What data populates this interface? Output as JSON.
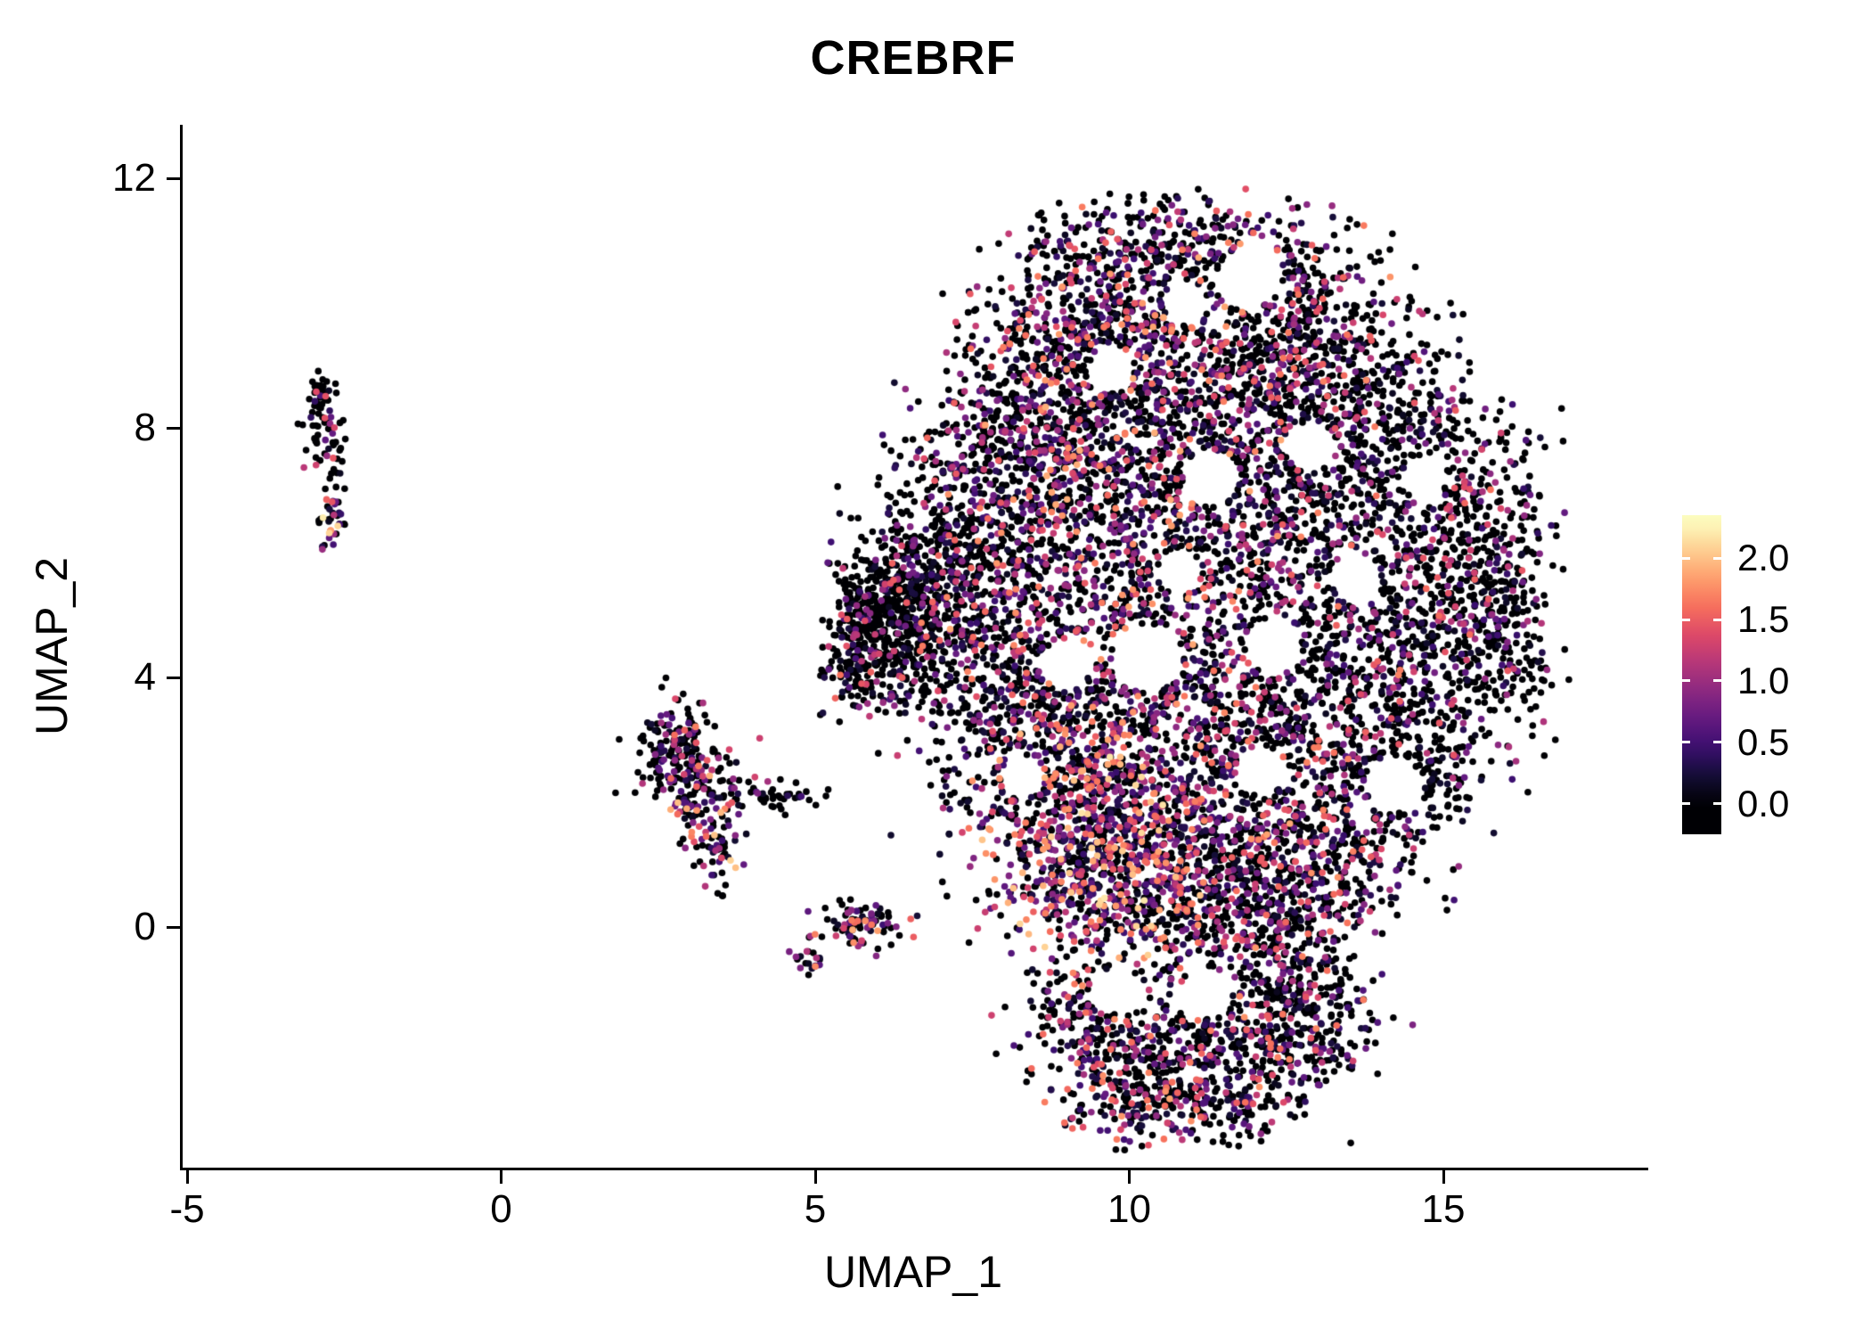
{
  "figure": {
    "background": "#FFFFFF",
    "axis_color": "#000000",
    "text_color": "#000000"
  },
  "chart_data": {
    "type": "scatter",
    "title": "CREBRF",
    "xlabel": "UMAP_1",
    "ylabel": "UMAP_2",
    "xlim": [
      -5.9,
      18.2
    ],
    "ylim": [
      -3.9,
      12.6
    ],
    "grid": false,
    "x_ticks": [
      {
        "value": -5,
        "label": "-5"
      },
      {
        "value": 0,
        "label": "0"
      },
      {
        "value": 5,
        "label": "5"
      },
      {
        "value": 10,
        "label": "10"
      },
      {
        "value": 15,
        "label": "15"
      }
    ],
    "y_ticks": [
      {
        "value": 0,
        "label": "0"
      },
      {
        "value": 4,
        "label": "4"
      },
      {
        "value": 8,
        "label": "8"
      },
      {
        "value": 12,
        "label": "12"
      }
    ],
    "legend": {
      "position": "right",
      "value_range": [
        0,
        2.3
      ],
      "bar_range": [
        -0.25,
        2.35
      ],
      "ticks": [
        {
          "value": 0.0,
          "label": "0.0"
        },
        {
          "value": 0.5,
          "label": "0.5"
        },
        {
          "value": 1.0,
          "label": "1.0"
        },
        {
          "value": 1.5,
          "label": "1.5"
        },
        {
          "value": 2.0,
          "label": "2.0"
        }
      ]
    },
    "colormap": {
      "name": "magma",
      "stops": [
        "#000004",
        "#140E36",
        "#3B0F70",
        "#641A80",
        "#8C2981",
        "#B73779",
        "#DE4968",
        "#F7705C",
        "#FE9F6D",
        "#FECF92",
        "#FCFDBF"
      ]
    },
    "point_color_zero": "#000004",
    "cluster_fields": [
      "center_x",
      "center_y",
      "sd_x",
      "sd_y",
      "n_points",
      "prob_zero_expression",
      "expression_amplitude"
    ],
    "clusters": [
      [
        10.6,
        11.0,
        1.1,
        0.45,
        220,
        0.55,
        1.7
      ],
      [
        9.3,
        10.2,
        0.8,
        0.6,
        200,
        0.6,
        1.6
      ],
      [
        12.2,
        10.3,
        0.9,
        0.6,
        220,
        0.6,
        1.6
      ],
      [
        8.6,
        9.0,
        0.8,
        0.7,
        260,
        0.6,
        1.6
      ],
      [
        10.2,
        9.3,
        0.9,
        0.7,
        300,
        0.5,
        1.8
      ],
      [
        11.8,
        9.0,
        0.9,
        0.7,
        280,
        0.55,
        1.7
      ],
      [
        13.4,
        9.3,
        0.8,
        0.7,
        240,
        0.65,
        1.5
      ],
      [
        7.8,
        7.6,
        0.7,
        0.7,
        260,
        0.6,
        1.6
      ],
      [
        9.3,
        7.8,
        0.9,
        0.8,
        320,
        0.5,
        1.8
      ],
      [
        11.0,
        7.6,
        0.9,
        0.8,
        300,
        0.5,
        1.8
      ],
      [
        12.8,
        7.7,
        0.9,
        0.8,
        280,
        0.6,
        1.6
      ],
      [
        14.4,
        7.8,
        0.8,
        0.8,
        260,
        0.65,
        1.5
      ],
      [
        7.2,
        6.0,
        0.6,
        0.7,
        240,
        0.65,
        1.5
      ],
      [
        8.7,
        6.2,
        0.8,
        0.8,
        280,
        0.55,
        1.7
      ],
      [
        10.4,
        6.0,
        0.9,
        0.8,
        260,
        0.5,
        1.8
      ],
      [
        12.2,
        6.0,
        0.9,
        0.8,
        260,
        0.55,
        1.7
      ],
      [
        13.9,
        6.0,
        0.8,
        0.8,
        260,
        0.65,
        1.5
      ],
      [
        15.5,
        6.2,
        0.6,
        0.9,
        280,
        0.7,
        1.4
      ],
      [
        15.9,
        4.6,
        0.5,
        0.8,
        260,
        0.7,
        1.4
      ],
      [
        7.6,
        4.5,
        0.7,
        0.8,
        260,
        0.6,
        1.6
      ],
      [
        9.2,
        4.6,
        0.8,
        0.8,
        240,
        0.55,
        1.7
      ],
      [
        11.0,
        4.4,
        0.9,
        0.8,
        230,
        0.55,
        1.7
      ],
      [
        12.8,
        4.4,
        0.8,
        0.8,
        240,
        0.6,
        1.6
      ],
      [
        14.5,
        4.2,
        0.7,
        0.8,
        240,
        0.65,
        1.5
      ],
      [
        8.2,
        3.0,
        0.7,
        0.8,
        280,
        0.5,
        1.8
      ],
      [
        9.8,
        3.0,
        0.8,
        0.8,
        300,
        0.45,
        1.9
      ],
      [
        11.5,
        2.9,
        0.8,
        0.8,
        260,
        0.55,
        1.7
      ],
      [
        13.2,
        2.8,
        0.8,
        0.8,
        260,
        0.6,
        1.6
      ],
      [
        14.7,
        2.6,
        0.6,
        0.6,
        180,
        0.65,
        1.5
      ],
      [
        8.8,
        1.6,
        0.7,
        0.7,
        280,
        0.45,
        1.9
      ],
      [
        10.2,
        1.5,
        0.8,
        0.7,
        340,
        0.35,
        2.1
      ],
      [
        11.8,
        1.4,
        0.8,
        0.7,
        280,
        0.5,
        1.8
      ],
      [
        13.3,
        1.3,
        0.7,
        0.6,
        220,
        0.6,
        1.6
      ],
      [
        9.5,
        0.4,
        0.7,
        0.5,
        260,
        0.4,
        2.0
      ],
      [
        11.0,
        0.2,
        0.9,
        0.5,
        280,
        0.55,
        1.7
      ],
      [
        12.6,
        0.3,
        0.7,
        0.5,
        220,
        0.6,
        1.6
      ],
      [
        9.3,
        -1.6,
        0.6,
        0.5,
        180,
        0.55,
        1.7
      ],
      [
        10.4,
        -1.9,
        0.8,
        0.6,
        240,
        0.55,
        1.7
      ],
      [
        11.8,
        -1.9,
        0.8,
        0.6,
        240,
        0.6,
        1.6
      ],
      [
        12.9,
        -1.6,
        0.5,
        0.5,
        150,
        0.6,
        1.6
      ],
      [
        10.2,
        -2.8,
        0.7,
        0.35,
        130,
        0.5,
        1.8
      ],
      [
        11.5,
        -2.9,
        0.7,
        0.3,
        120,
        0.55,
        1.7
      ],
      [
        12.4,
        -0.9,
        0.5,
        0.4,
        120,
        0.6,
        1.6
      ],
      [
        5.85,
        5.0,
        0.35,
        0.55,
        220,
        0.8,
        1.4
      ],
      [
        6.5,
        5.4,
        0.45,
        0.65,
        260,
        0.75,
        1.4
      ],
      [
        6.3,
        4.3,
        0.45,
        0.45,
        160,
        0.7,
        1.5
      ],
      [
        5.6,
        4.0,
        0.25,
        0.3,
        60,
        0.7,
        1.5
      ],
      [
        2.75,
        2.8,
        0.3,
        0.4,
        150,
        0.7,
        1.7
      ],
      [
        3.3,
        2.3,
        0.35,
        0.3,
        70,
        0.6,
        1.8
      ],
      [
        4.3,
        2.1,
        0.5,
        0.13,
        50,
        0.8,
        1.4
      ],
      [
        3.5,
        1.3,
        0.22,
        0.35,
        60,
        0.5,
        2.0
      ],
      [
        2.9,
        1.9,
        0.15,
        0.25,
        30,
        0.5,
        2.0
      ],
      [
        5.75,
        0.0,
        0.33,
        0.18,
        85,
        0.5,
        1.8
      ],
      [
        4.85,
        -0.5,
        0.12,
        0.15,
        20,
        0.35,
        2.1
      ],
      [
        -2.85,
        8.1,
        0.16,
        0.4,
        60,
        0.75,
        1.4
      ],
      [
        -2.8,
        8.6,
        0.12,
        0.15,
        15,
        0.7,
        1.4
      ],
      [
        -2.72,
        7.1,
        0.08,
        0.25,
        14,
        0.7,
        1.4
      ],
      [
        -2.7,
        6.35,
        0.1,
        0.2,
        30,
        0.3,
        2.1
      ]
    ],
    "void_fields": [
      "center_x",
      "center_y",
      "radius"
    ],
    "voids": [
      [
        11.9,
        10.4,
        0.5
      ],
      [
        11.3,
        7.2,
        0.45
      ],
      [
        12.9,
        7.7,
        0.4
      ],
      [
        10.3,
        4.3,
        0.55
      ],
      [
        12.3,
        4.5,
        0.45
      ],
      [
        14.2,
        2.3,
        0.45
      ],
      [
        9.0,
        4.2,
        0.4
      ],
      [
        13.6,
        5.6,
        0.4
      ],
      [
        10.8,
        5.7,
        0.35
      ],
      [
        8.3,
        2.4,
        0.35
      ],
      [
        12.1,
        2.5,
        0.4
      ],
      [
        14.7,
        7.2,
        0.35
      ],
      [
        9.7,
        8.9,
        0.35
      ],
      [
        10.9,
        10.0,
        0.35
      ],
      [
        9.8,
        -1.05,
        0.35
      ],
      [
        11.2,
        -1.05,
        0.4
      ]
    ]
  }
}
